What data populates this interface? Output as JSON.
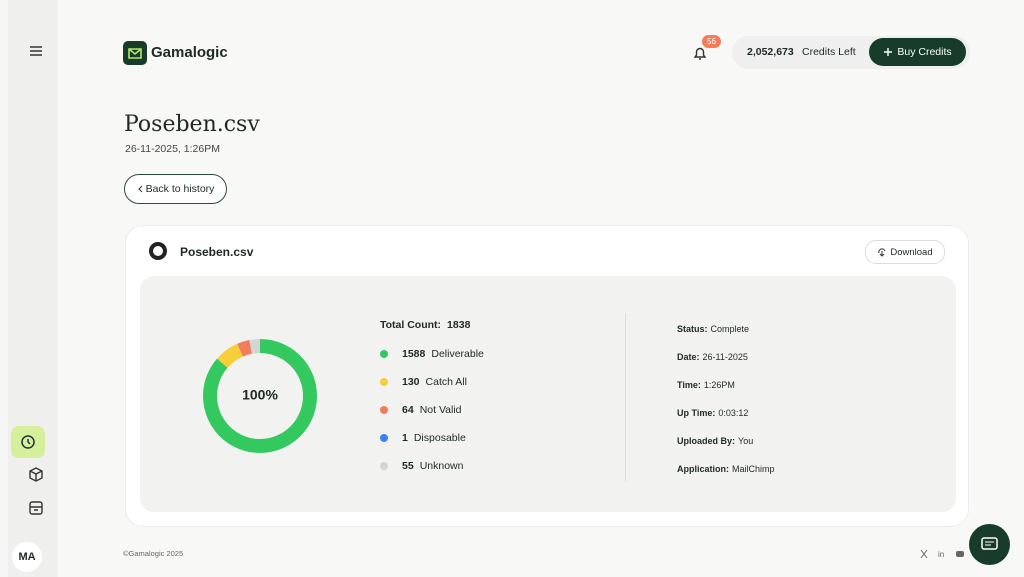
{
  "sidebar": {
    "avatar": "MA"
  },
  "header": {
    "brand": "Gamalogic",
    "notifications": "56",
    "credits": "2,052,673",
    "credits_label": "Credits Left",
    "buy_button": "Buy Credits"
  },
  "page": {
    "title": "Poseben.csv",
    "date": "26-11-2025, 1:26PM",
    "back_button": "Back to history"
  },
  "card": {
    "file_name": "Poseben.csv",
    "download": "Download",
    "summary": {
      "total_label": "Total Count:",
      "total": 1838,
      "center_label": "100%",
      "items": [
        {
          "count": 1588,
          "label": "Deliverable",
          "color": "#34c95f"
        },
        {
          "count": 130,
          "label": "Catch All",
          "color": "#f6cf3a"
        },
        {
          "count": 64,
          "label": "Not Valid",
          "color": "#f47c5a"
        },
        {
          "count": 1,
          "label": "Disposable",
          "color": "#3b82f6"
        },
        {
          "count": 55,
          "label": "Unknown",
          "color": "#d4d4d4"
        }
      ]
    },
    "details": [
      {
        "label": "Status:",
        "value": "Complete"
      },
      {
        "label": "Date:",
        "value": "26-11-2025"
      },
      {
        "label": "Time:",
        "value": "1:26PM"
      },
      {
        "label": "Up Time:",
        "value": "0:03:12"
      },
      {
        "label": "Uploaded By:",
        "value": "You"
      },
      {
        "label": "Application:",
        "value": "MailChimp"
      }
    ]
  },
  "footer": {
    "copyright": "©Gamalogic 2025"
  }
}
